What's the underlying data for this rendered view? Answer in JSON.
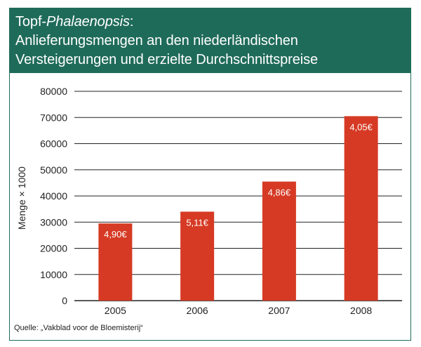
{
  "header": {
    "title_prefix": "Topf-",
    "title_italic": "Phalaenopsis",
    "title_colon": ":",
    "title_line2": "Anlieferungsmengen an den niederländischen",
    "title_line3": "Versteigerungen und erzielte Durchschnittspreise"
  },
  "source": "Quelle: „Vakblad voor de Bloemisterij“",
  "colors": {
    "header_bg": "#1f6b5a",
    "bar": "#d63a24",
    "grid": "#222222",
    "label_text": "#ffffff"
  },
  "chart_data": {
    "type": "bar",
    "categories": [
      "2005",
      "2006",
      "2007",
      "2008"
    ],
    "values": [
      29500,
      34000,
      45500,
      70500
    ],
    "bar_labels": [
      "4,90€",
      "5,11€",
      "4,86€",
      "4,05€"
    ],
    "ylabel": "Menge × 1000",
    "ylim": [
      0,
      80000
    ],
    "yticks": [
      0,
      10000,
      20000,
      30000,
      40000,
      50000,
      60000,
      70000,
      80000
    ],
    "ytick_labels": [
      "0",
      "10000",
      "20000",
      "30000",
      "40000",
      "50000",
      "60000",
      "70000",
      "80000"
    ],
    "grid": true
  }
}
